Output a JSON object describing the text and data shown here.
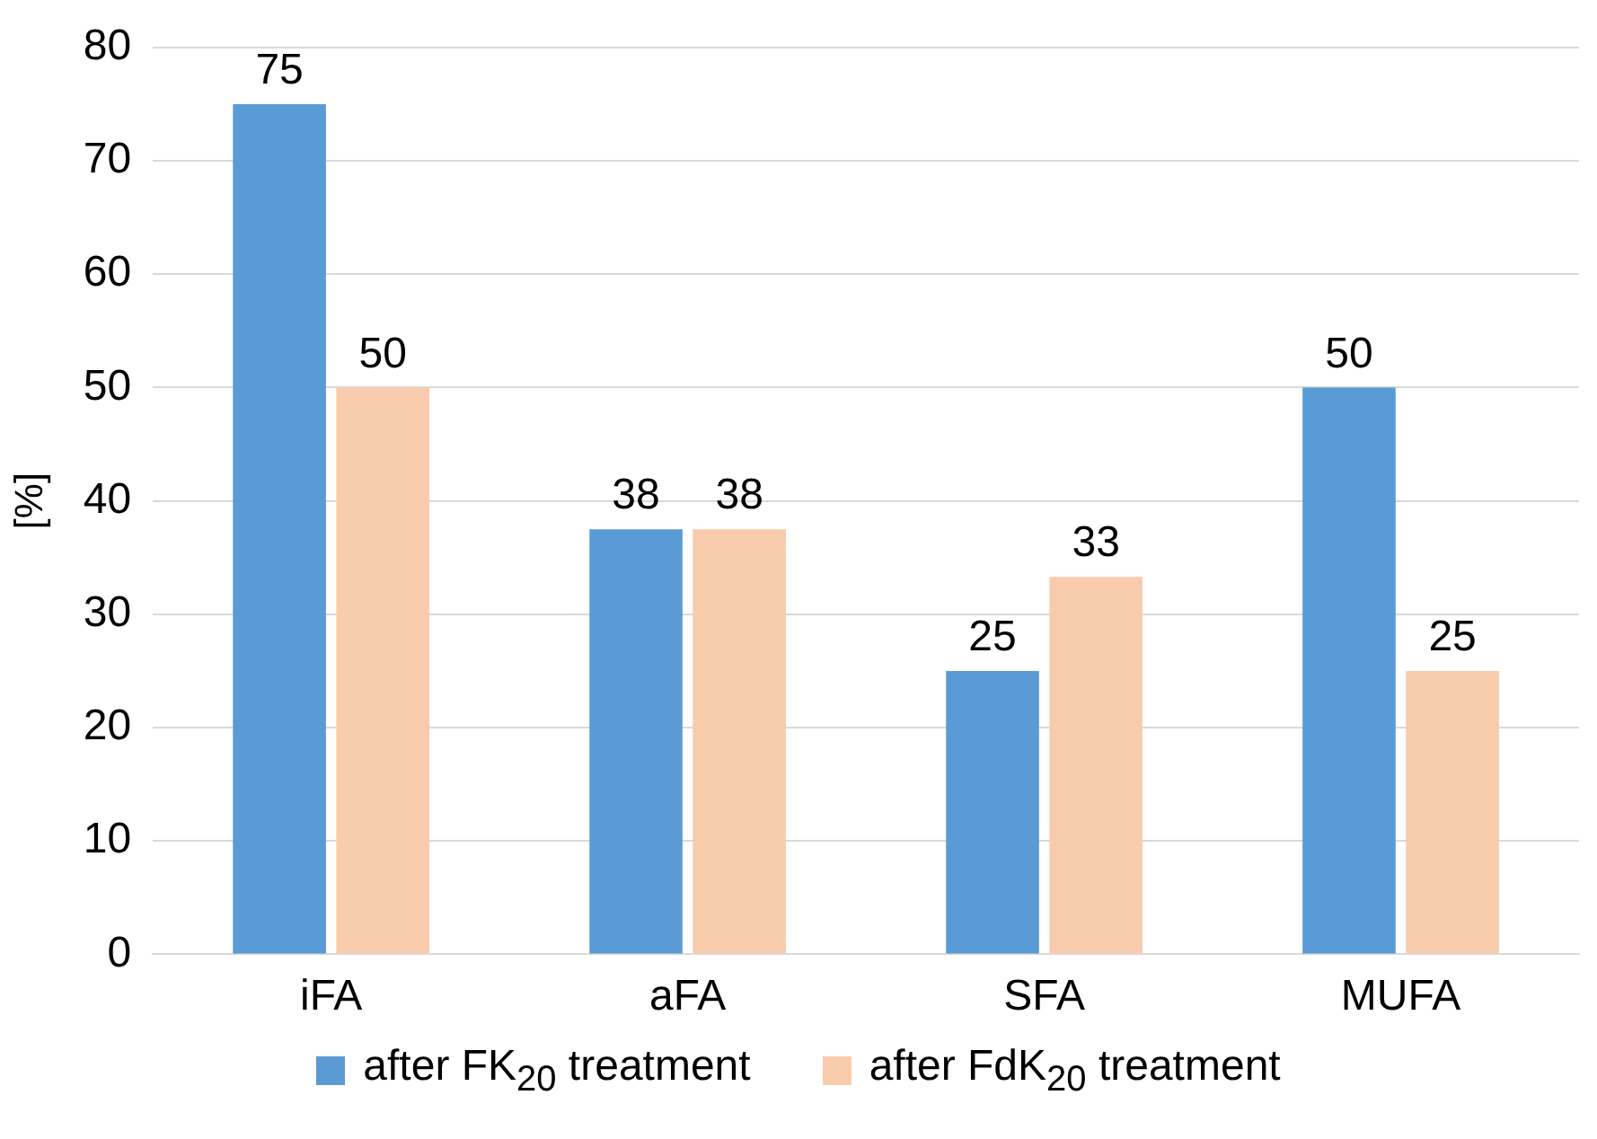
{
  "chart_data": {
    "type": "bar",
    "ylabel": "[%]",
    "categories": [
      "iFA",
      "aFA",
      "SFA",
      "MUFA"
    ],
    "series": [
      {
        "name": "after FK$_{20}$ treatment",
        "color": "#5b9bd5",
        "values": [
          75,
          37.5,
          25,
          50
        ],
        "value_labels": [
          "75",
          "38",
          "25",
          "50"
        ]
      },
      {
        "name": "after FdK$_{20}$ treatment",
        "color": "#f8cbad",
        "values": [
          50,
          37.5,
          33.3,
          25
        ],
        "value_labels": [
          "50",
          "38",
          "33",
          "25"
        ]
      }
    ],
    "ylim": [
      0,
      80
    ],
    "yticks": [
      0,
      10,
      20,
      30,
      40,
      50,
      60,
      70,
      80
    ],
    "grid": "y",
    "legend": "bottom"
  }
}
